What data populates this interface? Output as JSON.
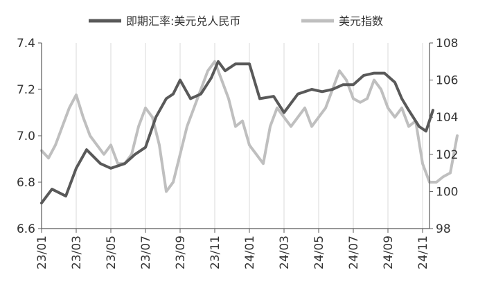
{
  "chart_data": {
    "type": "line",
    "legend_position": "top",
    "grid": "vertical",
    "x_ticks": [
      "23/01",
      "23/03",
      "23/05",
      "23/07",
      "23/09",
      "23/11",
      "24/01",
      "24/03",
      "24/05",
      "24/07",
      "24/09",
      "24/11"
    ],
    "y_left": {
      "min": 6.6,
      "max": 7.4,
      "ticks": [
        "6.6",
        "6.8",
        "7.0",
        "7.2",
        "7.4"
      ]
    },
    "y_right": {
      "min": 98,
      "max": 108,
      "ticks": [
        "98",
        "100",
        "102",
        "104",
        "106",
        "108"
      ]
    },
    "series": [
      {
        "name": "即期汇率:美元兑人民币",
        "axis": "left",
        "color": "#595959",
        "x": [
          0,
          0.3,
          0.7,
          1.0,
          1.3,
          1.7,
          2.0,
          2.4,
          2.7,
          3.0,
          3.3,
          3.6,
          3.8,
          4.0,
          4.3,
          4.6,
          4.9,
          5.1,
          5.3,
          5.6,
          6.0,
          6.3,
          6.7,
          7.0,
          7.4,
          7.8,
          8.1,
          8.4,
          8.7,
          9.0,
          9.3,
          9.6,
          9.9,
          10.2,
          10.4,
          10.6,
          10.9,
          11.1,
          11.3
        ],
        "values": [
          6.71,
          6.77,
          6.74,
          6.86,
          6.94,
          6.88,
          6.86,
          6.88,
          6.92,
          6.95,
          7.08,
          7.16,
          7.18,
          7.24,
          7.16,
          7.18,
          7.25,
          7.32,
          7.28,
          7.31,
          7.31,
          7.16,
          7.17,
          7.1,
          7.18,
          7.2,
          7.19,
          7.2,
          7.22,
          7.22,
          7.26,
          7.27,
          7.27,
          7.23,
          7.16,
          7.11,
          7.04,
          7.02,
          7.11
        ]
      },
      {
        "name": "美元指数",
        "axis": "right",
        "color": "#bfbfbf",
        "x": [
          0,
          0.2,
          0.4,
          0.6,
          0.8,
          1.0,
          1.2,
          1.4,
          1.6,
          1.8,
          2.0,
          2.2,
          2.4,
          2.6,
          2.8,
          3.0,
          3.2,
          3.4,
          3.6,
          3.8,
          4.0,
          4.2,
          4.4,
          4.6,
          4.8,
          5.0,
          5.2,
          5.4,
          5.6,
          5.8,
          6.0,
          6.2,
          6.4,
          6.6,
          6.8,
          7.0,
          7.2,
          7.4,
          7.6,
          7.8,
          8.0,
          8.2,
          8.4,
          8.6,
          8.8,
          9.0,
          9.2,
          9.4,
          9.6,
          9.8,
          10.0,
          10.2,
          10.4,
          10.6,
          10.8,
          11.0,
          11.2,
          11.4,
          11.6,
          11.8,
          12.0
        ],
        "values": [
          102.2,
          101.8,
          102.5,
          103.5,
          104.5,
          105.2,
          104.0,
          103.0,
          102.5,
          102.0,
          102.5,
          101.5,
          101.5,
          102.0,
          103.5,
          104.5,
          104.0,
          102.5,
          100.0,
          100.5,
          102.0,
          103.5,
          104.5,
          105.5,
          106.5,
          107.0,
          106.0,
          105.0,
          103.5,
          103.8,
          102.5,
          102.0,
          101.5,
          103.5,
          104.5,
          104.0,
          103.5,
          104.0,
          104.5,
          103.5,
          104.0,
          104.5,
          105.5,
          106.5,
          106.0,
          105.0,
          104.8,
          105.0,
          106.0,
          105.5,
          104.5,
          104.0,
          104.5,
          103.5,
          103.8,
          101.5,
          100.5,
          100.5,
          100.8,
          101.0,
          103.0
        ]
      }
    ]
  }
}
